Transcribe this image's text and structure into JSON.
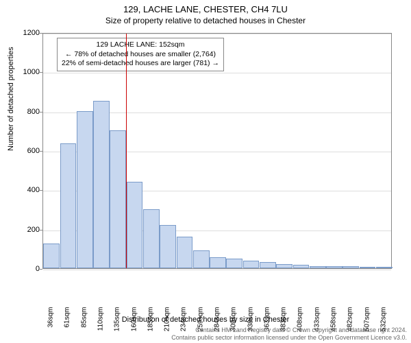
{
  "header": {
    "title": "129, LACHE LANE, CHESTER, CH4 7LU",
    "subtitle": "Size of property relative to detached houses in Chester"
  },
  "chart": {
    "type": "histogram",
    "background_color": "#ffffff",
    "grid_color": "#dddddd",
    "axis_color": "#888888",
    "bar_fill": "#c7d7ef",
    "bar_border": "#7a9bc9",
    "marker_color": "#cc0000",
    "ylim": [
      0,
      1200
    ],
    "ytick_step": 200,
    "yticks": [
      0,
      200,
      400,
      600,
      800,
      1000,
      1200
    ],
    "ylabel": "Number of detached properties",
    "xlabel": "Distribution of detached houses by size in Chester",
    "x_categories": [
      "36sqm",
      "61sqm",
      "85sqm",
      "110sqm",
      "135sqm",
      "160sqm",
      "185sqm",
      "210sqm",
      "234sqm",
      "259sqm",
      "284sqm",
      "309sqm",
      "338sqm",
      "363sqm",
      "383sqm",
      "408sqm",
      "433sqm",
      "458sqm",
      "482sqm",
      "507sqm",
      "532sqm"
    ],
    "bar_values": [
      125,
      635,
      800,
      850,
      700,
      440,
      300,
      220,
      160,
      90,
      55,
      50,
      40,
      30,
      22,
      18,
      12,
      12,
      9,
      8,
      7
    ],
    "marker_after_index": 4,
    "annotation": {
      "line1": "129 LACHE LANE: 152sqm",
      "line2": "← 78% of detached houses are smaller (2,764)",
      "line3": "22% of semi-detached houses are larger (781) →"
    },
    "label_fontsize": 11,
    "tick_fontsize": 10
  },
  "footer": {
    "line1": "Contains HM Land Registry data © Crown copyright and database right 2024.",
    "line2": "Contains public sector information licensed under the Open Government Licence v3.0."
  }
}
